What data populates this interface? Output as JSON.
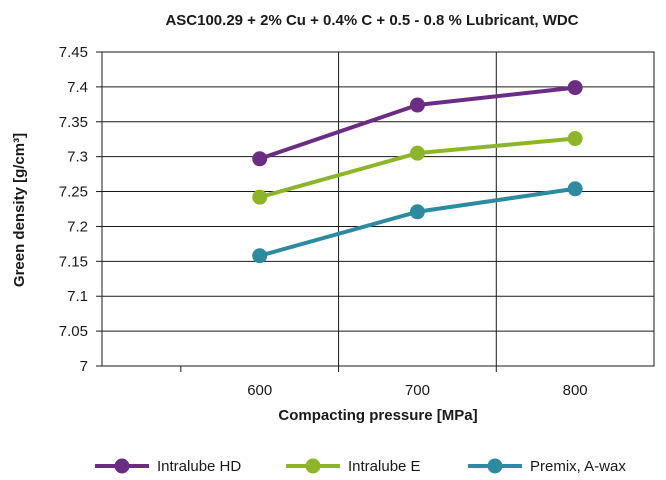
{
  "chart_data": {
    "type": "line",
    "title": "ASC100.29 + 2% Cu + 0.4% C + 0.5 - 0.8 % Lubricant, WDC",
    "xlabel": "Compacting pressure [MPa]",
    "ylabel": "Green density [g/cm³]",
    "x": [
      600,
      700,
      800
    ],
    "x_tick_labels": [
      "600",
      "700",
      "800"
    ],
    "xlim": [
      500,
      850
    ],
    "ylim": [
      7.0,
      7.45
    ],
    "y_ticks": [
      7,
      7.05,
      7.1,
      7.15,
      7.2,
      7.25,
      7.3,
      7.35,
      7.4,
      7.45
    ],
    "y_tick_labels": [
      "7",
      "7.05",
      "7.1",
      "7.15",
      "7.2",
      "7.25",
      "7.3",
      "7.35",
      "7.4",
      "7.45"
    ],
    "grid": true,
    "legend_position": "bottom",
    "series": [
      {
        "name": "Intralube HD",
        "color": "#6b2d83",
        "values": [
          7.297,
          7.374,
          7.399
        ]
      },
      {
        "name": "Intralube E",
        "color": "#8db52a",
        "values": [
          7.242,
          7.305,
          7.326
        ]
      },
      {
        "name": "Premix, A-wax",
        "color": "#2e8a9e",
        "values": [
          7.158,
          7.221,
          7.254
        ]
      }
    ]
  }
}
